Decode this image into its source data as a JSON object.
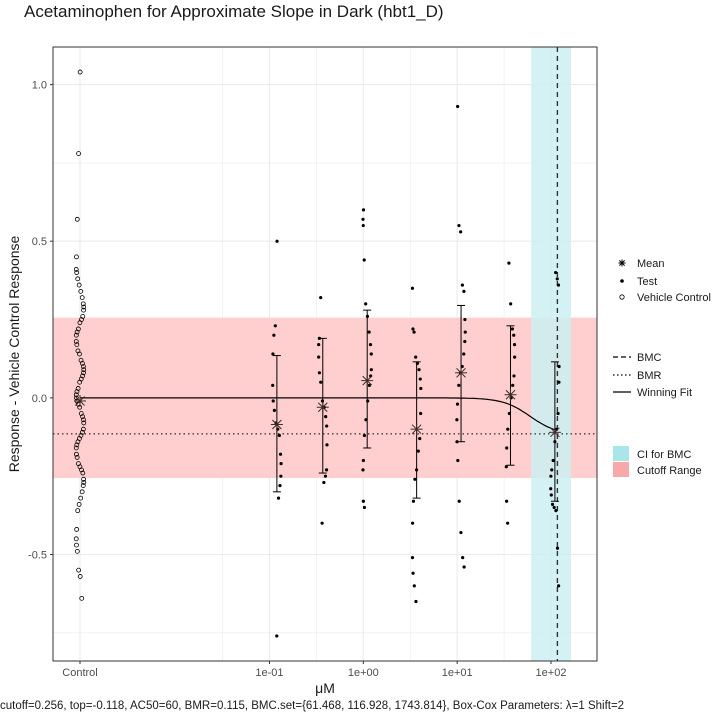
{
  "title": "Acetaminophen for Approximate Slope in Dark (hbt1_D)",
  "caption": "cutoff=0.256, top=-0.118, AC50=60, BMR=0.115, BMC.set={61.468, 116.928, 1743.814}, Box-Cox Parameters: λ=1 Shift=2",
  "legend": {
    "points": [
      "Mean",
      "Test",
      "Vehicle Control"
    ],
    "lines": [
      "BMC",
      "BMR",
      "Winning Fit"
    ],
    "fills": [
      "CI for BMC",
      "Cutoff Range"
    ]
  },
  "colors": {
    "ci_fill": "#cdf0f2",
    "ci_key": "#a8e6ea",
    "cutoff_fill": "#ffcccc",
    "cutoff_key": "#f8a8a8",
    "panel_border": "#333333",
    "grid": "#ebebeb"
  },
  "chart_data": {
    "type": "scatter",
    "xlabel": "μM",
    "ylabel": "Response - Vehicle Control Response",
    "x_scale": "log10",
    "x_ticks": [
      "Control",
      "1e-01",
      "1e+00",
      "1e+01",
      "1e+02"
    ],
    "y_ticks": [
      "-0.5",
      "0.0",
      "0.5",
      "1.0"
    ],
    "ylim": [
      -0.84,
      1.12
    ],
    "grid": true,
    "legend_position": "right",
    "cutoff": 0.256,
    "bmr": -0.115,
    "bmc": 116.928,
    "bmc_ci": [
      61.468,
      1743.814
    ],
    "winning_fit": {
      "model": "hill",
      "top": -0.118,
      "ac50": 60,
      "n": 3
    },
    "vehicle_control": [
      1.04,
      0.78,
      0.57,
      0.45,
      0.41,
      0.4,
      0.38,
      0.36,
      0.34,
      0.32,
      0.3,
      0.29,
      0.28,
      0.26,
      0.25,
      0.24,
      0.22,
      0.21,
      0.2,
      0.18,
      0.17,
      0.15,
      0.14,
      0.12,
      0.11,
      0.1,
      0.09,
      0.08,
      0.07,
      0.06,
      0.05,
      0.03,
      0.02,
      0.01,
      0.0,
      -0.01,
      -0.02,
      -0.03,
      -0.05,
      -0.06,
      -0.07,
      -0.08,
      -0.1,
      -0.11,
      -0.12,
      -0.13,
      -0.14,
      -0.15,
      -0.16,
      -0.18,
      -0.19,
      -0.21,
      -0.22,
      -0.23,
      -0.24,
      -0.26,
      -0.27,
      -0.28,
      -0.3,
      -0.32,
      -0.34,
      -0.36,
      -0.42,
      -0.45,
      -0.47,
      -0.49,
      -0.55,
      -0.57,
      -0.64
    ],
    "vehicle_control_mean": -0.01,
    "concentrations": [
      {
        "conc": 0.12,
        "mean": -0.085,
        "sd_low": -0.3,
        "sd_high": 0.135,
        "values": [
          0.5,
          0.23,
          0.2,
          0.14,
          0.04,
          -0.01,
          -0.04,
          -0.08,
          -0.1,
          -0.12,
          -0.18,
          -0.21,
          -0.25,
          -0.28,
          -0.32,
          -0.76
        ]
      },
      {
        "conc": 0.37,
        "mean": -0.03,
        "sd_low": -0.24,
        "sd_high": 0.19,
        "values": [
          0.32,
          0.19,
          0.17,
          0.13,
          0.08,
          0.05,
          -0.01,
          -0.03,
          -0.06,
          -0.09,
          -0.15,
          -0.23,
          -0.25,
          -0.27,
          -0.4
        ]
      },
      {
        "conc": 1.1,
        "mean": 0.055,
        "sd_low": -0.16,
        "sd_high": 0.28,
        "values": [
          0.6,
          0.57,
          0.55,
          0.44,
          0.3,
          0.26,
          0.21,
          0.17,
          0.14,
          0.09,
          0.07,
          0.04,
          -0.01,
          -0.07,
          -0.12,
          -0.2,
          -0.23,
          -0.33,
          -0.35
        ]
      },
      {
        "conc": 3.7,
        "mean": -0.1,
        "sd_low": -0.32,
        "sd_high": 0.115,
        "values": [
          0.35,
          0.22,
          0.21,
          0.13,
          0.11,
          0.09,
          0.06,
          0.03,
          -0.05,
          -0.13,
          -0.17,
          -0.23,
          -0.26,
          -0.33,
          -0.4,
          -0.51,
          -0.56,
          -0.6,
          -0.65
        ]
      },
      {
        "conc": 11,
        "mean": 0.08,
        "sd_low": -0.14,
        "sd_high": 0.295,
        "values": [
          0.93,
          0.55,
          0.53,
          0.36,
          0.34,
          0.25,
          0.21,
          0.18,
          0.14,
          0.1,
          0.08,
          0.04,
          -0.02,
          -0.07,
          -0.14,
          -0.2,
          -0.33,
          -0.43,
          -0.51,
          -0.54
        ]
      },
      {
        "conc": 37,
        "mean": 0.01,
        "sd_low": -0.215,
        "sd_high": 0.23,
        "values": [
          0.43,
          0.3,
          0.22,
          0.2,
          0.17,
          0.13,
          0.07,
          0.04,
          0.0,
          -0.05,
          -0.1,
          -0.16,
          -0.22,
          -0.33,
          -0.4
        ]
      },
      {
        "conc": 110,
        "mean": -0.11,
        "sd_low": -0.33,
        "sd_high": 0.115,
        "values": [
          0.4,
          0.38,
          0.36,
          0.1,
          0.05,
          -0.05,
          -0.1,
          -0.14,
          -0.2,
          -0.23,
          -0.25,
          -0.29,
          -0.31,
          -0.34,
          -0.35,
          -0.36,
          -0.48,
          -0.6
        ]
      }
    ]
  }
}
